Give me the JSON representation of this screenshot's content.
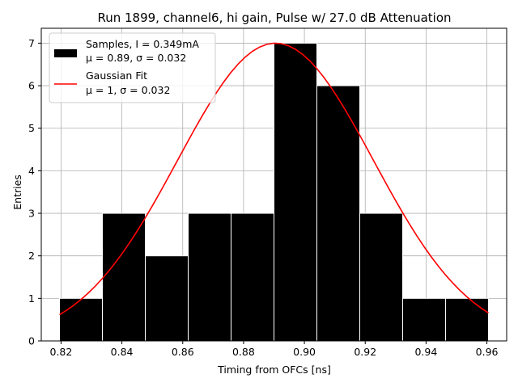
{
  "chart_data": {
    "type": "bar",
    "title": "Run 1899, channel6, hi gain, Pulse w/ 27.0 dB Attenuation",
    "xlabel": "Timing from OFCs [ns]",
    "ylabel": "Entries",
    "xlim": [
      0.8135,
      0.9665
    ],
    "ylim": [
      0,
      7.35
    ],
    "xticks": [
      "0.82",
      "0.84",
      "0.86",
      "0.88",
      "0.90",
      "0.92",
      "0.94",
      "0.96"
    ],
    "yticks": [
      "0",
      "1",
      "2",
      "3",
      "4",
      "5",
      "6",
      "7"
    ],
    "grid": true,
    "legend_position": "top-left",
    "histogram": {
      "name_line1": "Samples, I = 0.349mA",
      "name_line2": "μ = 0.89, σ = 0.032",
      "color": "#000000",
      "bin_edges": [
        0.8195,
        0.8336,
        0.8477,
        0.8618,
        0.8759,
        0.89,
        0.9041,
        0.9182,
        0.9323,
        0.9464,
        0.9605
      ],
      "counts": [
        1,
        3,
        2,
        3,
        3,
        7,
        6,
        3,
        1,
        1
      ]
    },
    "fit": {
      "name_line1": "Gaussian Fit",
      "name_line2": "μ = 1, σ = 0.032",
      "color": "#ff0000",
      "amplitude": 7.0,
      "mean": 0.8905,
      "sigma": 0.0322,
      "x_range": [
        0.8195,
        0.9605
      ]
    }
  }
}
